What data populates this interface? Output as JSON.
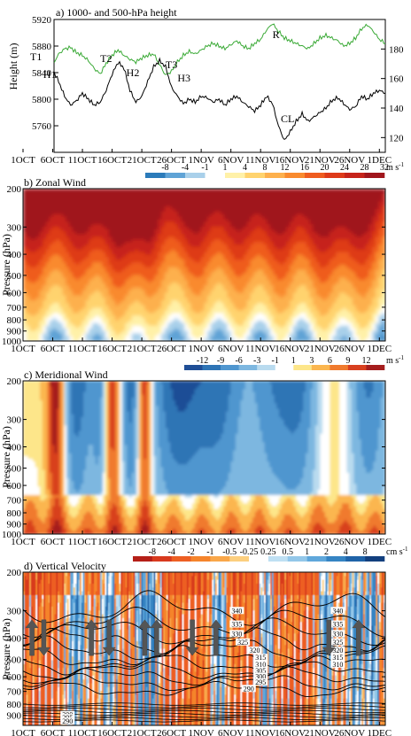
{
  "chart_data": [
    {
      "panel": "a",
      "type": "line",
      "title": "a) 1000- and 500-hPa height",
      "ylabel": "Height (m)",
      "x_tick_labels": [
        "1OCT",
        "6OCT",
        "11OCT",
        "16OCT",
        "21OCT",
        "26OCT",
        "1NOV",
        "6NOV",
        "11NOV",
        "16NOV",
        "21NOV",
        "26NOV",
        "1DEC"
      ],
      "y_left_ticks": [
        "5760",
        "5800",
        "5840",
        "5880",
        "5920"
      ],
      "y_left_range": [
        5720,
        5920
      ],
      "y_right_ticks": [
        "120",
        "140",
        "160",
        "180"
      ],
      "y_right_range": [
        110,
        200
      ],
      "series": [
        {
          "axis": "left",
          "color": "#39a935",
          "x_days": [
            0,
            1,
            2,
            3,
            4,
            5,
            6,
            7,
            8,
            9,
            10,
            11,
            12,
            13,
            14,
            15,
            16,
            17,
            18,
            19,
            20,
            21,
            22,
            23,
            24,
            25,
            26,
            27,
            28,
            29,
            30,
            31,
            32,
            33,
            34,
            35,
            36,
            37,
            38,
            39,
            40,
            41,
            42,
            43,
            44,
            45,
            46,
            47,
            48,
            49,
            50,
            51,
            52,
            53,
            54,
            55,
            56,
            57,
            58,
            59,
            60,
            61
          ],
          "values": [
            5860,
            5856,
            5846,
            5830,
            5832,
            5852,
            5868,
            5876,
            5878,
            5870,
            5866,
            5858,
            5846,
            5838,
            5854,
            5866,
            5874,
            5866,
            5860,
            5856,
            5862,
            5866,
            5868,
            5852,
            5836,
            5842,
            5856,
            5866,
            5872,
            5868,
            5874,
            5880,
            5884,
            5880,
            5876,
            5882,
            5888,
            5880,
            5876,
            5884,
            5890,
            5904,
            5914,
            5902,
            5892,
            5888,
            5884,
            5880,
            5876,
            5884,
            5892,
            5896,
            5892,
            5888,
            5880,
            5884,
            5892,
            5906,
            5912,
            5902,
            5890,
            5884
          ]
        },
        {
          "axis": "right",
          "color": "#000000",
          "x_days": [
            0,
            1,
            2,
            3,
            4,
            5,
            6,
            7,
            8,
            9,
            10,
            11,
            12,
            13,
            14,
            15,
            16,
            17,
            18,
            19,
            20,
            21,
            22,
            23,
            24,
            25,
            26,
            27,
            28,
            29,
            30,
            31,
            32,
            33,
            34,
            35,
            36,
            37,
            38,
            39,
            40,
            41,
            42,
            43,
            44,
            45,
            46,
            47,
            48,
            49,
            50,
            51,
            52,
            53,
            54,
            55,
            56,
            57,
            58,
            59,
            60,
            61
          ],
          "values": [
            170,
            163,
            150,
            142,
            160,
            166,
            158,
            148,
            142,
            145,
            150,
            146,
            142,
            144,
            152,
            163,
            171,
            167,
            152,
            144,
            148,
            158,
            168,
            172,
            168,
            154,
            148,
            143,
            146,
            144,
            148,
            147,
            144,
            146,
            142,
            146,
            148,
            144,
            141,
            138,
            142,
            148,
            143,
            128,
            118,
            124,
            131,
            136,
            131,
            134,
            137,
            140,
            145,
            147,
            143,
            139,
            141,
            148,
            146,
            150,
            152,
            150
          ]
        }
      ],
      "annotations": [
        "T1",
        "H1",
        "T2",
        "H2",
        "T3",
        "H3",
        "R",
        "CL"
      ]
    },
    {
      "panel": "b",
      "type": "heatmap",
      "title": "b) Zonal Wind",
      "ylabel": "Pressure (hPa)",
      "units": "m s",
      "unit_exponent": "-1",
      "y_ticks": [
        "200",
        "300",
        "400",
        "500",
        "600",
        "700",
        "800",
        "900",
        "1000"
      ],
      "x_tick_labels": [
        "1OCT",
        "6OCT",
        "11OCT",
        "16OCT",
        "21OCT",
        "26OCT",
        "1NOV",
        "6NOV",
        "11NOV",
        "16NOV",
        "21NOV",
        "26NOV",
        "1DEC"
      ],
      "colorbar_labels": [
        "-8",
        "-4",
        "-1",
        "1",
        "4",
        "8",
        "12",
        "16",
        "20",
        "24",
        "28",
        "32"
      ],
      "colorbar_colors": [
        "#2b7bba",
        "#5fa3d6",
        "#a9d0ea",
        "#ffffff",
        "#fff1a8",
        "#ffd36e",
        "#fdb04d",
        "#f98a2e",
        "#ef5c1f",
        "#de3a19",
        "#c6231a",
        "#a0151c"
      ],
      "levels": [
        -8,
        -4,
        -1,
        1,
        4,
        8,
        12,
        16,
        20,
        24,
        28,
        32
      ],
      "high_wind_days": [
        0,
        1,
        2,
        3,
        4,
        9,
        10,
        11,
        15,
        16,
        17,
        19,
        20,
        21,
        27,
        28,
        29,
        30,
        35,
        36,
        37,
        42,
        43,
        44,
        49,
        50,
        51,
        55,
        56,
        57,
        58
      ]
    },
    {
      "panel": "c",
      "type": "heatmap",
      "title": "c) Meridional Wind",
      "ylabel": "Pressure (hPa)",
      "units": "m s",
      "unit_exponent": "-1",
      "y_ticks": [
        "200",
        "300",
        "400",
        "500",
        "600",
        "700",
        "800",
        "900",
        "1000"
      ],
      "x_tick_labels": [
        "1OCT",
        "6OCT",
        "11OCT",
        "16OCT",
        "21OCT",
        "26OCT",
        "1NOV",
        "6NOV",
        "11NOV",
        "16NOV",
        "21NOV",
        "26NOV",
        "1DEC"
      ],
      "colorbar_labels": [
        "-12",
        "-9",
        "-6",
        "-3",
        "-1",
        "1",
        "3",
        "6",
        "9",
        "12"
      ],
      "colorbar_colors": [
        "#1f4e96",
        "#2e74b5",
        "#4f96cf",
        "#7db7e0",
        "#b9dbef",
        "#ffffff",
        "#fde68a",
        "#fbb64f",
        "#f07a2d",
        "#d8401f",
        "#a51d1d"
      ],
      "levels": [
        -12,
        -9,
        -6,
        -3,
        -1,
        1,
        3,
        6,
        9,
        12
      ],
      "southerly_bursts_days": [
        5,
        6,
        14,
        15,
        16,
        20,
        21
      ]
    },
    {
      "panel": "d",
      "type": "heatmap",
      "title": "d) Vertical Velocity",
      "ylabel": "Pressure (hPa)",
      "units": "cm s",
      "unit_exponent": "-1",
      "y_ticks": [
        "200",
        "300",
        "400",
        "500",
        "600",
        "700",
        "800",
        "900"
      ],
      "x_tick_labels": [
        "1OCT",
        "6OCT",
        "11OCT",
        "16OCT",
        "21OCT",
        "26OCT",
        "1NOV",
        "6NOV",
        "11NOV",
        "16NOV",
        "21NOV",
        "26NOV",
        "1DEC"
      ],
      "colorbar_labels": [
        "-8",
        "-4",
        "-2",
        "-1",
        "-0.5",
        "-0.25",
        "0.25",
        "0.5",
        "1",
        "2",
        "4",
        "8"
      ],
      "colorbar_colors": [
        "#b51f18",
        "#d83a1e",
        "#ed5f23",
        "#f5842b",
        "#f9a74a",
        "#fccf7f",
        "#ffffff",
        "#bfe0f3",
        "#93c7e9",
        "#5fa7db",
        "#3584c3",
        "#1f63a8",
        "#123f7e"
      ],
      "levels": [
        -8,
        -4,
        -2,
        -1,
        -0.5,
        -0.25,
        0.25,
        0.5,
        1,
        2,
        4,
        8
      ],
      "isentrope_labels": [
        "340",
        "335",
        "330",
        "325",
        "320",
        "315",
        "310",
        "305",
        "300",
        "295",
        "290"
      ],
      "isentrope_values": [
        340,
        335,
        330,
        325,
        320,
        315,
        310,
        305,
        300,
        295,
        290
      ],
      "arrows": [
        {
          "day": 1.5,
          "direction": "up"
        },
        {
          "day": 3.5,
          "direction": "down"
        },
        {
          "day": 11.5,
          "direction": "up"
        },
        {
          "day": 14.5,
          "direction": "down"
        },
        {
          "day": 20.5,
          "direction": "up"
        },
        {
          "day": 22.5,
          "direction": "up"
        },
        {
          "day": 28.5,
          "direction": "down"
        },
        {
          "day": 32.5,
          "direction": "up"
        },
        {
          "day": 51.5,
          "direction": "down"
        },
        {
          "day": 56.5,
          "direction": "up"
        }
      ]
    }
  ]
}
